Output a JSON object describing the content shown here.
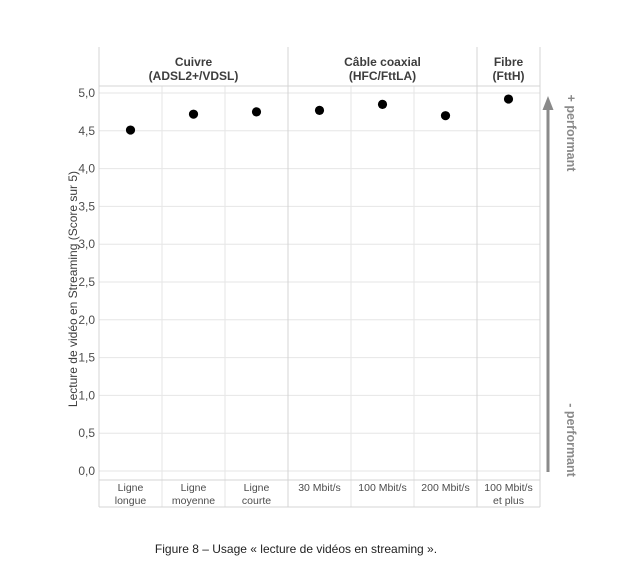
{
  "chart_data": {
    "type": "scatter",
    "ylabel": "Lecture de vidéo en Streaming (Score  sur 5)",
    "ylim": [
      0,
      5
    ],
    "yticks": [
      "0,0",
      "0,5",
      "1,0",
      "1,5",
      "2,0",
      "2,5",
      "3,0",
      "3,5",
      "4,0",
      "4,5",
      "5,0"
    ],
    "groups": [
      {
        "name_line1": "Cuivre",
        "name_line2": "(ADSL2+/VDSL)",
        "span": [
          0,
          3
        ]
      },
      {
        "name_line1": "Câble coaxial",
        "name_line2": "(HFC/FttLA)",
        "span": [
          3,
          6
        ]
      },
      {
        "name_line1": "Fibre",
        "name_line2": "(FttH)",
        "span": [
          6,
          7
        ]
      }
    ],
    "categories": [
      {
        "lines": [
          "Ligne",
          "longue"
        ]
      },
      {
        "lines": [
          "Ligne",
          "moyenne"
        ]
      },
      {
        "lines": [
          "Ligne",
          "courte"
        ]
      },
      {
        "lines": [
          "30 Mbit/s"
        ]
      },
      {
        "lines": [
          "100 Mbit/s"
        ]
      },
      {
        "lines": [
          "200 Mbit/s"
        ]
      },
      {
        "lines": [
          "100 Mbit/s",
          "et plus"
        ]
      }
    ],
    "values": [
      4.51,
      4.72,
      4.75,
      4.77,
      4.85,
      4.7,
      4.92
    ],
    "grid": true,
    "legend": "none",
    "marker_color": "#000000"
  },
  "arrow": {
    "top_label": "+ performant",
    "bottom_label": "- performant",
    "color": "#8a8a8a"
  },
  "caption": "Figure 8 – Usage « lecture de vidéos en streaming »."
}
